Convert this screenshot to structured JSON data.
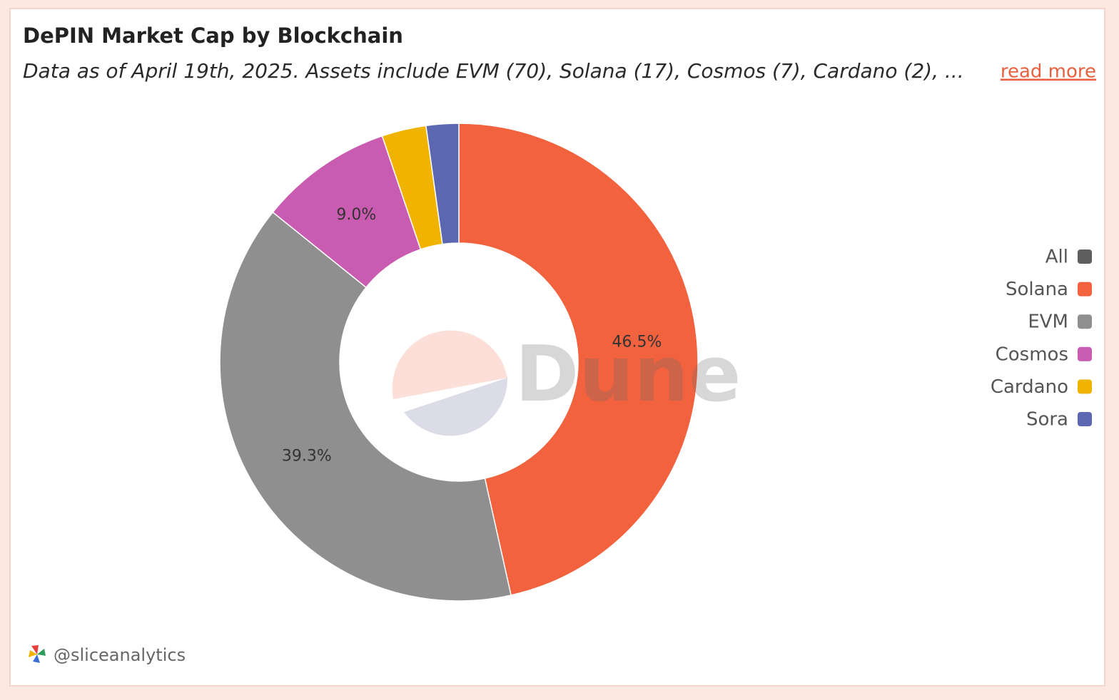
{
  "chart_data": {
    "type": "donut",
    "title": "DePIN Market Cap by Blockchain",
    "subtitle": "Data as of April 19th, 2025. Assets include EVM (70), Solana (17), Cosmos (7), Cardano (2), ...",
    "link": "read more",
    "categories": [
      "All",
      "Solana",
      "EVM",
      "Cosmos",
      "Cardano",
      "Sora"
    ],
    "values": [
      null,
      46.5,
      39.3,
      9.0,
      3.0,
      2.2
    ],
    "value_labels": [
      null,
      "46.5%",
      "39.3%",
      "9.0%",
      null,
      null
    ],
    "colors": [
      "#5e5e5e",
      "#f2623e",
      "#8f8f8f",
      "#c95cb0",
      "#f0b400",
      "#5b67b0"
    ],
    "legend": "right",
    "watermark": "Dune",
    "author": "@sliceanalytics"
  }
}
